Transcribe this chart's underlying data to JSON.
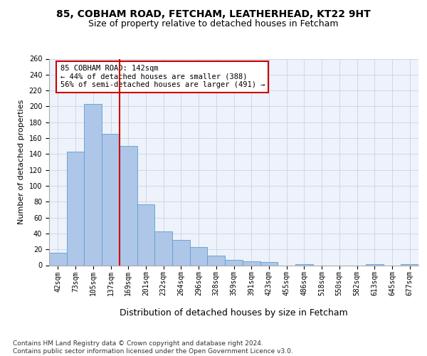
{
  "title1": "85, COBHAM ROAD, FETCHAM, LEATHERHEAD, KT22 9HT",
  "title2": "Size of property relative to detached houses in Fetcham",
  "xlabel": "Distribution of detached houses by size in Fetcham",
  "ylabel": "Number of detached properties",
  "categories": [
    "42sqm",
    "73sqm",
    "105sqm",
    "137sqm",
    "169sqm",
    "201sqm",
    "232sqm",
    "264sqm",
    "296sqm",
    "328sqm",
    "359sqm",
    "391sqm",
    "423sqm",
    "455sqm",
    "486sqm",
    "518sqm",
    "550sqm",
    "582sqm",
    "613sqm",
    "645sqm",
    "677sqm"
  ],
  "values": [
    16,
    143,
    203,
    165,
    150,
    77,
    43,
    32,
    23,
    12,
    7,
    5,
    4,
    0,
    1,
    0,
    0,
    0,
    1,
    0,
    1
  ],
  "bar_color": "#aec6e8",
  "bar_edge_color": "#5a9fd4",
  "vline_x": 3.5,
  "vline_color": "#cc0000",
  "annotation_text": "85 COBHAM ROAD: 142sqm\n← 44% of detached houses are smaller (388)\n56% of semi-detached houses are larger (491) →",
  "annotation_box_color": "white",
  "annotation_box_edge_color": "#cc0000",
  "ylim": [
    0,
    260
  ],
  "yticks": [
    0,
    20,
    40,
    60,
    80,
    100,
    120,
    140,
    160,
    180,
    200,
    220,
    240,
    260
  ],
  "footer": "Contains HM Land Registry data © Crown copyright and database right 2024.\nContains public sector information licensed under the Open Government Licence v3.0.",
  "bg_color": "#eef2fa",
  "grid_color": "#c8d4e8",
  "title1_fontsize": 10,
  "title2_fontsize": 9,
  "xlabel_fontsize": 9,
  "ylabel_fontsize": 8,
  "tick_fontsize": 7,
  "annotation_fontsize": 7.5,
  "footer_fontsize": 6.5
}
